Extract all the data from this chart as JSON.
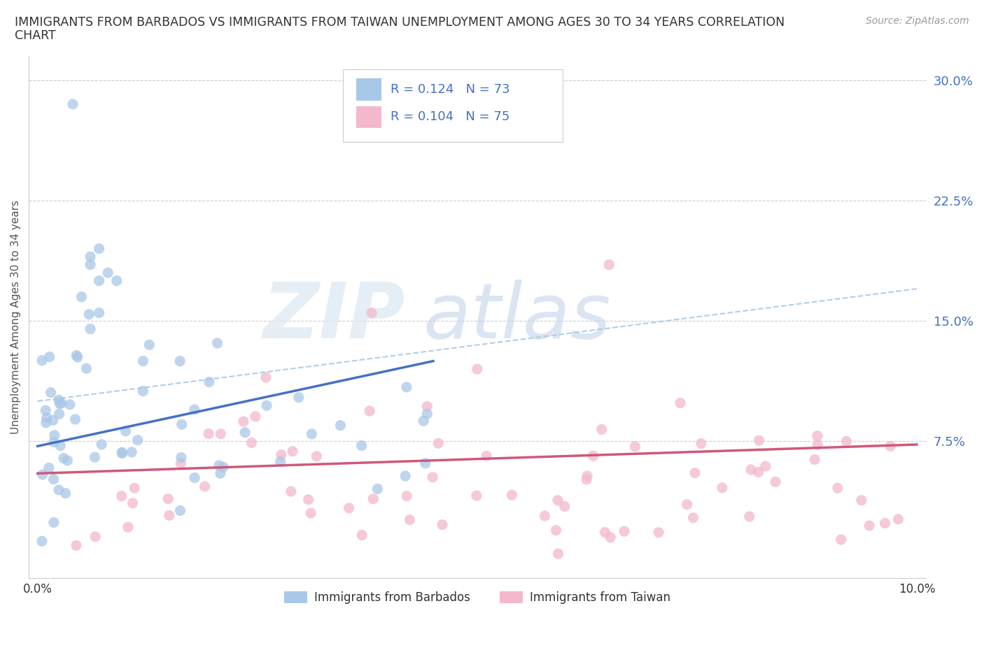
{
  "title_line1": "IMMIGRANTS FROM BARBADOS VS IMMIGRANTS FROM TAIWAN UNEMPLOYMENT AMONG AGES 30 TO 34 YEARS CORRELATION",
  "title_line2": "CHART",
  "source_text": "Source: ZipAtlas.com",
  "ylabel": "Unemployment Among Ages 30 to 34 years",
  "series1_color": "#a8c8e8",
  "series1_color_line": "#4472c4",
  "series2_color": "#f4b8cc",
  "series2_color_line": "#d05878",
  "legend_R1": "0.124",
  "legend_N1": "73",
  "legend_R2": "0.104",
  "legend_N2": "75",
  "legend_label1": "Immigrants from Barbados",
  "legend_label2": "Immigrants from Taiwan",
  "ytick_labels": [
    "7.5%",
    "15.0%",
    "22.5%",
    "30.0%"
  ],
  "ytick_vals": [
    0.075,
    0.15,
    0.225,
    0.3
  ],
  "grid_color": "#cccccc",
  "watermark_zip_color": "#d8e4f0",
  "watermark_atlas_color": "#c8d8e8"
}
